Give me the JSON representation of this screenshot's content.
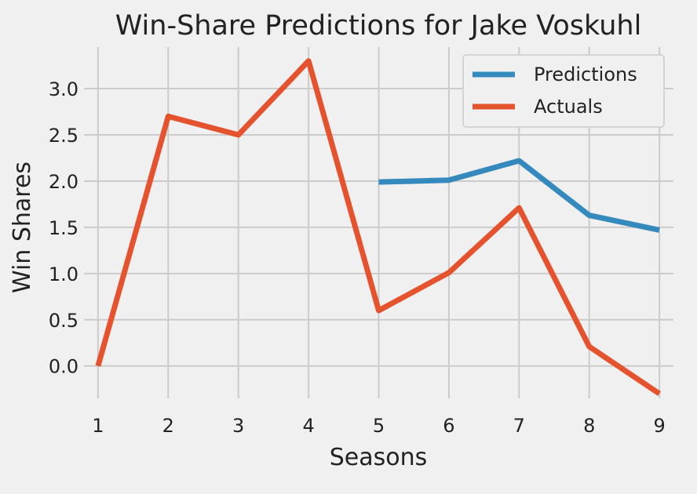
{
  "chart_data": {
    "type": "line",
    "title": "Win-Share Predictions for Jake Voskuhl",
    "xlabel": "Seasons",
    "ylabel": "Win Shares",
    "xlim": [
      0.8,
      9.2
    ],
    "ylim": [
      -0.35,
      3.45
    ],
    "xticks": [
      1,
      2,
      3,
      4,
      5,
      6,
      7,
      8,
      9
    ],
    "xtick_labels": [
      "1",
      "2",
      "3",
      "4",
      "5",
      "6",
      "7",
      "8",
      "9"
    ],
    "yticks": [
      0.0,
      0.5,
      1.0,
      1.5,
      2.0,
      2.5,
      3.0
    ],
    "ytick_labels": [
      "0.0",
      "0.5",
      "1.0",
      "1.5",
      "2.0",
      "2.5",
      "3.0"
    ],
    "grid": true,
    "legend_position": "top-right",
    "series": [
      {
        "name": "Predictions",
        "color": "#348abd",
        "x": [
          5,
          6,
          7,
          8,
          9
        ],
        "y": [
          1.99,
          2.01,
          2.22,
          1.63,
          1.47
        ]
      },
      {
        "name": "Actuals",
        "color": "#e5532e",
        "x": [
          1,
          2,
          3,
          4,
          5,
          6,
          7,
          8,
          9
        ],
        "y": [
          0.0,
          2.7,
          2.5,
          3.3,
          0.6,
          1.01,
          1.71,
          0.21,
          -0.3
        ]
      }
    ]
  }
}
